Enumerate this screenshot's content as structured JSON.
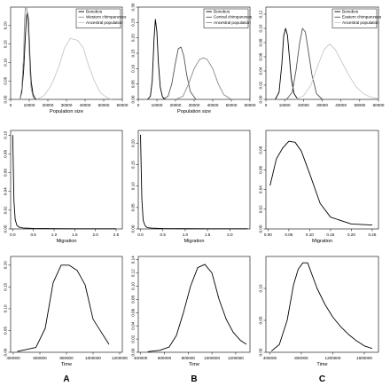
{
  "column_labels": [
    "A",
    "B",
    "C"
  ],
  "chart_data": [
    {
      "id": "A1",
      "type": "line",
      "xlabel": "Population size",
      "ylabel": "",
      "xlim": [
        0,
        60000
      ],
      "ylim": [
        0,
        0.25
      ],
      "xticks": [
        0,
        10000,
        20000,
        30000,
        40000,
        50000,
        60000
      ],
      "xtick_labels": [
        "0",
        "10000",
        "20000",
        "30000",
        "40000",
        "50000",
        "60000"
      ],
      "yticks": [
        0,
        0.05,
        0.1,
        0.15,
        0.2
      ],
      "ytick_labels": [
        "0.00",
        "0.05",
        "0.10",
        "0.15",
        "0.20"
      ],
      "legend": {
        "placement": "top-right",
        "entries": [
          "Bonobos",
          "Western chimpanzees",
          "Ancestral population"
        ]
      },
      "series": [
        {
          "name": "Bonobos",
          "color": "#000000",
          "x": [
            5000,
            6000,
            7000,
            7800,
            8500,
            9000,
            9500,
            10000,
            10500,
            11000,
            12000,
            13000,
            14000
          ],
          "y": [
            0,
            0.02,
            0.08,
            0.16,
            0.225,
            0.235,
            0.22,
            0.16,
            0.1,
            0.05,
            0.015,
            0.003,
            0
          ]
        },
        {
          "name": "Western chimpanzees",
          "color": "#8c8c8c",
          "x": [
            5000,
            6000,
            7000,
            7500,
            8000,
            8500,
            9000,
            9500,
            10000,
            10500,
            11000,
            12000,
            13000
          ],
          "y": [
            0,
            0.03,
            0.12,
            0.22,
            0.25,
            0.25,
            0.23,
            0.19,
            0.13,
            0.07,
            0.03,
            0.008,
            0
          ]
        },
        {
          "name": "Ancestral population",
          "color": "#c8c8c8",
          "x": [
            14000,
            18000,
            22000,
            26000,
            29000,
            32000,
            36000,
            39000,
            42000,
            45000,
            48000,
            51000,
            54000
          ],
          "y": [
            0,
            0.01,
            0.04,
            0.09,
            0.14,
            0.165,
            0.16,
            0.14,
            0.09,
            0.05,
            0.02,
            0.007,
            0
          ]
        }
      ]
    },
    {
      "id": "B1",
      "type": "line",
      "xlabel": "Population size",
      "ylabel": "",
      "xlim": [
        0,
        60000
      ],
      "ylim": [
        0,
        0.3
      ],
      "xticks": [
        0,
        10000,
        20000,
        30000,
        40000,
        50000,
        60000
      ],
      "xtick_labels": [
        "0",
        "10000",
        "20000",
        "30000",
        "40000",
        "50000",
        "60000"
      ],
      "yticks": [
        0,
        0.05,
        0.1,
        0.15,
        0.2,
        0.25,
        0.3
      ],
      "ytick_labels": [
        "0.00",
        "0.05",
        "0.10",
        "0.15",
        "0.20",
        "0.25",
        "0.30"
      ],
      "legend": {
        "placement": "top-right",
        "entries": [
          "Bonobos",
          "Central chimpanzees",
          "Ancestral population"
        ]
      },
      "series": [
        {
          "name": "Bonobos",
          "color": "#000000",
          "x": [
            5000,
            6500,
            7500,
            8500,
            9200,
            10000,
            10800,
            11800,
            13000,
            14500
          ],
          "y": [
            0,
            0.01,
            0.06,
            0.2,
            0.26,
            0.22,
            0.12,
            0.04,
            0.008,
            0
          ]
        },
        {
          "name": "Central chimpanzees",
          "color": "#555555",
          "x": [
            13000,
            16000,
            18000,
            20000,
            21500,
            23000,
            24500,
            26000,
            28000,
            31000
          ],
          "y": [
            0,
            0.01,
            0.05,
            0.12,
            0.165,
            0.17,
            0.14,
            0.08,
            0.025,
            0
          ]
        },
        {
          "name": "Ancestral population",
          "color": "#8c8c8c",
          "x": [
            20000,
            24000,
            27000,
            30000,
            33000,
            35000,
            37000,
            40000,
            43000,
            46000,
            50000
          ],
          "y": [
            0,
            0.01,
            0.05,
            0.1,
            0.13,
            0.135,
            0.13,
            0.1,
            0.05,
            0.015,
            0
          ]
        }
      ]
    },
    {
      "id": "C1",
      "type": "line",
      "xlabel": "",
      "ylabel": "",
      "xlim": [
        0,
        60000
      ],
      "ylim": [
        0,
        0.13
      ],
      "xticks": [
        0,
        10000,
        20000,
        30000,
        40000,
        50000,
        60000
      ],
      "xtick_labels": [
        "0",
        "10000",
        "20000",
        "30000",
        "40000",
        "50000",
        "60000"
      ],
      "yticks": [
        0,
        0.02,
        0.04,
        0.06,
        0.08,
        0.1,
        0.12
      ],
      "ytick_labels": [
        "0.00",
        "0.02",
        "0.04",
        "0.06",
        "0.08",
        "0.10",
        "0.12"
      ],
      "legend": {
        "placement": "top-right",
        "entries": [
          "Bonobos",
          "Eastern chimpanzees",
          "Ancestral population"
        ]
      },
      "series": [
        {
          "name": "Bonobos",
          "color": "#000000",
          "x": [
            5000,
            7000,
            8500,
            9500,
            10500,
            11500,
            12500,
            13500,
            15000,
            17000
          ],
          "y": [
            0,
            0.01,
            0.05,
            0.09,
            0.1,
            0.09,
            0.06,
            0.03,
            0.008,
            0
          ]
        },
        {
          "name": "Eastern chimpanzees",
          "color": "#555555",
          "x": [
            11000,
            14000,
            16000,
            18000,
            19500,
            21000,
            22500,
            24500,
            27000,
            30000
          ],
          "y": [
            0,
            0.01,
            0.04,
            0.08,
            0.1,
            0.095,
            0.07,
            0.035,
            0.008,
            0
          ]
        },
        {
          "name": "Ancestral population",
          "color": "#c8c8c8",
          "x": [
            16000,
            20000,
            24000,
            28000,
            31000,
            34000,
            37000,
            40000,
            44000,
            48000,
            52000,
            56000,
            60000
          ],
          "y": [
            0,
            0.005,
            0.02,
            0.05,
            0.07,
            0.078,
            0.07,
            0.055,
            0.035,
            0.018,
            0.008,
            0.003,
            0.001
          ]
        }
      ]
    },
    {
      "id": "A2",
      "type": "line",
      "xlabel": "Migration",
      "ylabel": "",
      "xlim": [
        -0.05,
        2.65
      ],
      "ylim": [
        0,
        0.105
      ],
      "xticks": [
        0,
        0.5,
        1.0,
        1.5,
        2.0,
        2.5
      ],
      "xtick_labels": [
        "0.0",
        "0.5",
        "1.0",
        "1.5",
        "2.0",
        "2.5"
      ],
      "yticks": [
        0,
        0.02,
        0.04,
        0.06,
        0.08,
        0.1
      ],
      "ytick_labels": [
        "0.00",
        "0.02",
        "0.04",
        "0.06",
        "0.08",
        "0.10"
      ],
      "series": [
        {
          "name": "",
          "color": "#000000",
          "x": [
            0.0,
            0.03,
            0.06,
            0.1,
            0.15,
            0.25,
            0.5,
            1.0,
            1.5,
            2.0,
            2.5
          ],
          "y": [
            0.1,
            0.03,
            0.01,
            0.004,
            0.002,
            0.001,
            0.0005,
            0.0003,
            0.0002,
            0.0002,
            0.0002
          ]
        }
      ]
    },
    {
      "id": "B2",
      "type": "line",
      "xlabel": "Migration",
      "ylabel": "",
      "xlim": [
        -0.05,
        2.45
      ],
      "ylim": [
        0,
        0.23
      ],
      "xticks": [
        0,
        0.5,
        1.0,
        1.5,
        2.0
      ],
      "xtick_labels": [
        "0.0",
        "0.5",
        "1.0",
        "1.5",
        "2.0"
      ],
      "yticks": [
        0,
        0.05,
        0.1,
        0.15,
        0.2
      ],
      "ytick_labels": [
        "0.00",
        "0.05",
        "0.10",
        "0.15",
        "0.20"
      ],
      "series": [
        {
          "name": "",
          "color": "#000000",
          "x": [
            0.0,
            0.03,
            0.06,
            0.1,
            0.15,
            0.25,
            0.5,
            1.0,
            1.5,
            2.0,
            2.4
          ],
          "y": [
            0.22,
            0.07,
            0.02,
            0.008,
            0.003,
            0.002,
            0.001,
            0.0005,
            0.0003,
            0.0003,
            0.0003
          ]
        }
      ]
    },
    {
      "id": "C2",
      "type": "line",
      "xlabel": "Migration",
      "ylabel": "",
      "xlim": [
        -0.005,
        0.265
      ],
      "ylim": [
        0,
        0.1
      ],
      "xticks": [
        0,
        0.05,
        0.1,
        0.15,
        0.2,
        0.25
      ],
      "xtick_labels": [
        "0.00",
        "0.05",
        "0.10",
        "0.15",
        "0.20",
        "0.25"
      ],
      "yticks": [
        0,
        0.02,
        0.04,
        0.06,
        0.08
      ],
      "ytick_labels": [
        "0.00",
        "0.02",
        "0.04",
        "0.06",
        "0.08"
      ],
      "series": [
        {
          "name": "",
          "color": "#000000",
          "x": [
            0.005,
            0.02,
            0.035,
            0.05,
            0.065,
            0.08,
            0.1,
            0.125,
            0.15,
            0.2,
            0.25
          ],
          "y": [
            0.044,
            0.071,
            0.082,
            0.089,
            0.088,
            0.079,
            0.056,
            0.026,
            0.012,
            0.005,
            0.004
          ]
        }
      ]
    },
    {
      "id": "A3",
      "type": "line",
      "xlabel": "Time",
      "ylabel": "",
      "xlim": [
        380000,
        1220000
      ],
      "ylim": [
        0,
        0.22
      ],
      "xticks": [
        400000,
        600000,
        800000,
        1000000,
        1200000
      ],
      "xtick_labels": [
        "400000",
        "600000",
        "800000",
        "1000000",
        "1200000"
      ],
      "yticks": [
        0,
        0.05,
        0.1,
        0.15,
        0.2
      ],
      "ytick_labels": [
        "0.00",
        "0.05",
        "0.10",
        "0.15",
        "0.20"
      ],
      "series": [
        {
          "name": "",
          "color": "#000000",
          "x": [
            430000,
            570000,
            640000,
            700000,
            760000,
            820000,
            880000,
            940000,
            1000000,
            1060000,
            1120000
          ],
          "y": [
            0.002,
            0.011,
            0.055,
            0.16,
            0.2,
            0.2,
            0.188,
            0.155,
            0.076,
            0.047,
            0.018
          ]
        }
      ]
    },
    {
      "id": "B3",
      "type": "line",
      "xlabel": "Time",
      "ylabel": "",
      "xlim": [
        380000,
        1320000
      ],
      "ylim": [
        0,
        0.145
      ],
      "xticks": [
        400000,
        600000,
        800000,
        1000000,
        1200000
      ],
      "xtick_labels": [
        "400000",
        "600000",
        "800000",
        "1000000",
        "1200000"
      ],
      "yticks": [
        0,
        0.02,
        0.04,
        0.06,
        0.08,
        0.1,
        0.12,
        0.14
      ],
      "ytick_labels": [
        "0.00",
        "0.02",
        "0.04",
        "0.06",
        "0.08",
        "0.10",
        "0.12",
        "0.14"
      ],
      "series": [
        {
          "name": "",
          "color": "#000000",
          "x": [
            460000,
            560000,
            640000,
            700000,
            760000,
            820000,
            880000,
            940000,
            1000000,
            1060000,
            1120000,
            1180000,
            1240000,
            1290000
          ],
          "y": [
            0.001,
            0.003,
            0.008,
            0.025,
            0.06,
            0.1,
            0.128,
            0.133,
            0.12,
            0.08,
            0.05,
            0.03,
            0.018,
            0.012
          ]
        }
      ]
    },
    {
      "id": "C3",
      "type": "line",
      "xlabel": "Time",
      "ylabel": "",
      "xlim": [
        350000,
        1780000
      ],
      "ylim": [
        0,
        0.15
      ],
      "xticks": [
        400000,
        800000,
        1200000,
        1600000
      ],
      "xtick_labels": [
        "400000",
        "800000",
        "1200000",
        "1600000"
      ],
      "yticks": [
        0,
        0.05,
        0.1
      ],
      "ytick_labels": [
        "0.00",
        "0.05",
        "0.10"
      ],
      "series": [
        {
          "name": "",
          "color": "#000000",
          "x": [
            420000,
            520000,
            620000,
            700000,
            760000,
            820000,
            880000,
            940000,
            1000000,
            1100000,
            1200000,
            1300000,
            1400000,
            1500000,
            1600000,
            1700000
          ],
          "y": [
            0.002,
            0.012,
            0.05,
            0.105,
            0.13,
            0.14,
            0.14,
            0.12,
            0.1,
            0.075,
            0.055,
            0.04,
            0.028,
            0.018,
            0.01,
            0.006
          ]
        }
      ]
    }
  ]
}
